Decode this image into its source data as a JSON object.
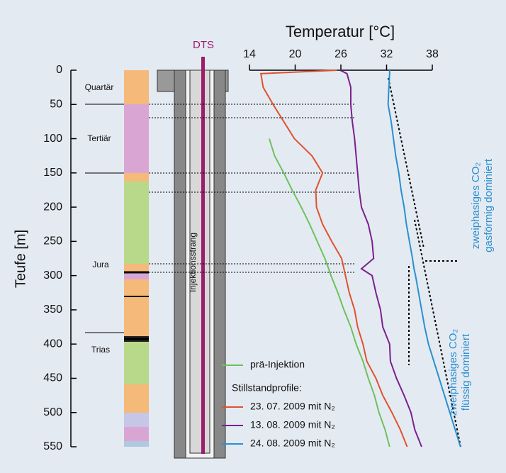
{
  "chart_data": {
    "type": "line",
    "title": "Temperatur [°C]",
    "ylabel": "Teufe [m]",
    "xlim": [
      14,
      38
    ],
    "xticks": [
      14,
      20,
      26,
      32,
      38
    ],
    "ylim": [
      0,
      550
    ],
    "yticks": [
      0,
      50,
      100,
      150,
      200,
      250,
      300,
      350,
      400,
      450,
      500,
      550
    ],
    "y": [
      0,
      5,
      25,
      50,
      75,
      100,
      125,
      150,
      175,
      200,
      225,
      250,
      275,
      290,
      300,
      325,
      350,
      375,
      400,
      425,
      450,
      475,
      500,
      525,
      550
    ],
    "series": [
      {
        "name": "prä-Injektion",
        "color": "#6cc25a",
        "values": [
          null,
          null,
          null,
          null,
          null,
          16.6,
          17.3,
          18.5,
          19.6,
          20.8,
          21.9,
          22.9,
          23.9,
          24.4,
          24.7,
          25.6,
          26.4,
          27.3,
          28.0,
          28.9,
          29.6,
          30.4,
          31.0,
          31.8,
          32.4
        ]
      },
      {
        "name": "23. 07. 2009 mit N₂",
        "color": "#e0522d",
        "values": [
          25.5,
          15.5,
          15.8,
          17.1,
          18.5,
          19.9,
          22.2,
          23.6,
          22.7,
          22.8,
          23.6,
          24.8,
          26.1,
          26.4,
          26.6,
          27.1,
          27.8,
          28.2,
          28.9,
          29.4,
          30.6,
          31.5,
          32.7,
          33.8,
          34.7
        ]
      },
      {
        "name": "13. 08. 2009 mit N₂",
        "color": "#7b1f8e",
        "values": [
          25.9,
          26.8,
          27.3,
          27.3,
          27.5,
          27.8,
          28.0,
          28.2,
          28.4,
          28.7,
          29.6,
          30.1,
          30.3,
          28.7,
          30.1,
          30.6,
          31.2,
          31.5,
          32.4,
          32.5,
          33.3,
          34.3,
          35.2,
          35.7,
          36.6
        ]
      },
      {
        "name": "24. 08. 2009 mit N₂",
        "color": "#2a8fd0",
        "values": [
          32.4,
          32.4,
          32.3,
          32.2,
          32.6,
          32.9,
          33.2,
          33.6,
          33.9,
          34.3,
          34.6,
          35.0,
          35.4,
          35.6,
          35.8,
          36.2,
          36.6,
          37.0,
          37.5,
          38.2,
          38.9,
          39.6,
          40.3,
          41.0,
          41.7
        ]
      }
    ],
    "legend_heading": "Stillstandprofile:",
    "annotations": {
      "well": "DTS",
      "string": "Injektionsstrang",
      "strata": [
        "Quartär",
        "Tertiär",
        "Jura",
        "Trias"
      ],
      "gas": [
        "zweiphasiges CO₂",
        "gasförmig dominiert"
      ],
      "liquid": [
        "zweiphasiges CO₂",
        "flüssig dominiert"
      ]
    }
  }
}
